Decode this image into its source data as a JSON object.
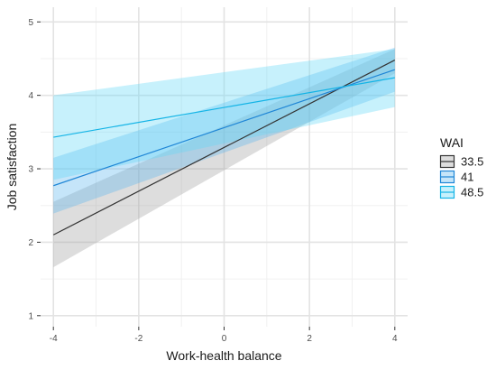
{
  "chart_data": {
    "type": "line",
    "xlabel": "Work-health balance",
    "ylabel": "Job satisfaction",
    "xlim": [
      -4.3,
      4.3
    ],
    "ylim": [
      0.85,
      5.2
    ],
    "xticks": [
      -4,
      -2,
      0,
      2,
      4
    ],
    "xtick_labels": [
      "-4",
      "-2",
      "0",
      "2",
      "4"
    ],
    "yticks": [
      1,
      2,
      3,
      4,
      5
    ],
    "ytick_labels": [
      "1",
      "2",
      "3",
      "4",
      "5"
    ],
    "grid": true,
    "legend": {
      "title": "WAI",
      "placement": "right"
    },
    "series": [
      {
        "name": "33.5",
        "color": "#333333",
        "fill": "#9e9e9e",
        "x": [
          -4,
          4
        ],
        "y": [
          2.1,
          4.48
        ],
        "lower": [
          1.66,
          4.3
        ],
        "upper": [
          2.55,
          4.63
        ]
      },
      {
        "name": "41",
        "color": "#1f86d6",
        "fill": "#5ab4ee",
        "x": [
          -4,
          4
        ],
        "y": [
          2.77,
          4.35
        ],
        "lower": [
          2.39,
          4.05
        ],
        "upper": [
          3.15,
          4.65
        ]
      },
      {
        "name": "48.5",
        "color": "#14b4e6",
        "fill": "#5fd7f7",
        "x": [
          -4,
          4
        ],
        "y": [
          3.43,
          4.24
        ],
        "lower": [
          2.85,
          3.84
        ],
        "upper": [
          4.0,
          4.63
        ]
      }
    ]
  }
}
